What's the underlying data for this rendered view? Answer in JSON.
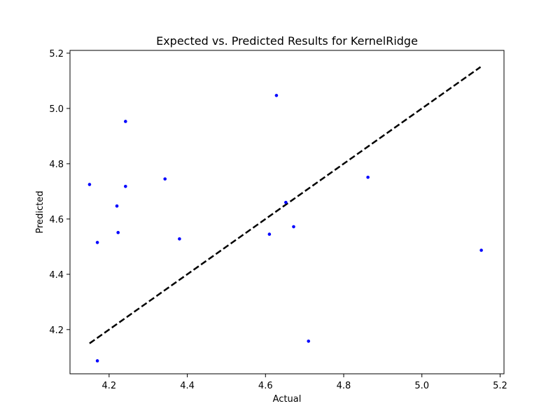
{
  "chart_data": {
    "type": "scatter",
    "title": "Expected vs. Predicted Results for KernelRidge",
    "xlabel": "Actual",
    "ylabel": "Predicted",
    "xlim": [
      4.1,
      5.21
    ],
    "ylim": [
      4.04,
      5.21
    ],
    "x_ticks": [
      "4.2",
      "4.4",
      "4.6",
      "4.8",
      "5.0",
      "5.2"
    ],
    "y_ticks": [
      "4.2",
      "4.4",
      "4.6",
      "4.8",
      "5.0",
      "5.2"
    ],
    "grid": false,
    "point_color": "#0000ff",
    "reference_line": {
      "style": "dashed",
      "color": "#000000",
      "x": [
        4.15,
        5.15
      ],
      "y": [
        4.15,
        5.15
      ]
    },
    "points": [
      {
        "x": 4.15,
        "y": 4.725
      },
      {
        "x": 4.17,
        "y": 4.515
      },
      {
        "x": 4.17,
        "y": 4.087
      },
      {
        "x": 4.22,
        "y": 4.647
      },
      {
        "x": 4.223,
        "y": 4.551
      },
      {
        "x": 4.242,
        "y": 4.953
      },
      {
        "x": 4.242,
        "y": 4.718
      },
      {
        "x": 4.343,
        "y": 4.745
      },
      {
        "x": 4.38,
        "y": 4.528
      },
      {
        "x": 4.61,
        "y": 4.545
      },
      {
        "x": 4.628,
        "y": 5.047
      },
      {
        "x": 4.652,
        "y": 4.66
      },
      {
        "x": 4.672,
        "y": 4.572
      },
      {
        "x": 4.71,
        "y": 4.158
      },
      {
        "x": 4.862,
        "y": 4.751
      },
      {
        "x": 5.152,
        "y": 4.487
      }
    ]
  }
}
